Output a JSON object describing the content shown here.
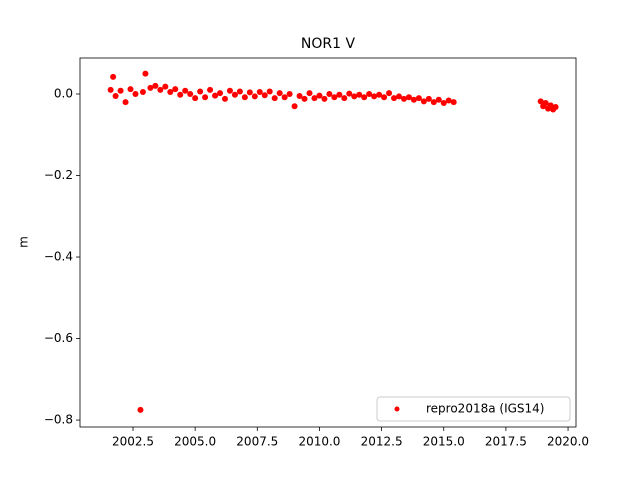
{
  "chart_data": {
    "type": "scatter",
    "title": "NOR1 V",
    "y_label": "m",
    "x": [
      2001.6,
      2001.7,
      2001.8,
      2002.0,
      2002.2,
      2002.4,
      2002.6,
      2002.8,
      2002.9,
      2003.0,
      2003.2,
      2003.4,
      2003.6,
      2003.8,
      2004.0,
      2004.2,
      2004.4,
      2004.6,
      2004.8,
      2005.0,
      2005.2,
      2005.4,
      2005.6,
      2005.8,
      2006.0,
      2006.2,
      2006.4,
      2006.6,
      2006.8,
      2007.0,
      2007.2,
      2007.4,
      2007.6,
      2007.8,
      2008.0,
      2008.2,
      2008.4,
      2008.6,
      2008.8,
      2009.0,
      2009.2,
      2009.4,
      2009.6,
      2009.8,
      2010.0,
      2010.2,
      2010.4,
      2010.6,
      2010.8,
      2011.0,
      2011.2,
      2011.4,
      2011.6,
      2011.8,
      2012.0,
      2012.2,
      2012.4,
      2012.6,
      2012.8,
      2013.0,
      2013.2,
      2013.4,
      2013.6,
      2013.8,
      2014.0,
      2014.2,
      2014.4,
      2014.6,
      2014.8,
      2015.0,
      2015.2,
      2015.4,
      2018.9,
      2019.0,
      2019.1,
      2019.2,
      2019.3,
      2019.4,
      2019.5
    ],
    "series": [
      {
        "name": "repro2018a (IGS14)",
        "color": "#ff0000",
        "values": [
          0.01,
          0.042,
          -0.005,
          0.008,
          -0.02,
          0.012,
          0.0,
          -0.775,
          0.005,
          0.05,
          0.015,
          0.02,
          0.01,
          0.018,
          0.005,
          0.012,
          -0.002,
          0.008,
          0.0,
          -0.01,
          0.006,
          -0.008,
          0.01,
          -0.004,
          0.002,
          -0.012,
          0.008,
          -0.002,
          0.006,
          -0.008,
          0.004,
          -0.006,
          0.005,
          -0.003,
          0.006,
          -0.01,
          0.002,
          -0.008,
          0.0,
          -0.03,
          -0.005,
          -0.012,
          0.002,
          -0.01,
          -0.004,
          -0.012,
          0.0,
          -0.008,
          -0.002,
          -0.01,
          0.001,
          -0.006,
          -0.002,
          -0.008,
          0.0,
          -0.006,
          -0.002,
          -0.008,
          0.002,
          -0.01,
          -0.006,
          -0.012,
          -0.008,
          -0.014,
          -0.01,
          -0.018,
          -0.012,
          -0.02,
          -0.014,
          -0.022,
          -0.016,
          -0.02,
          -0.018,
          -0.03,
          -0.022,
          -0.036,
          -0.028,
          -0.038,
          -0.032
        ]
      }
    ],
    "xlim": [
      2000.368,
      2020.32
    ],
    "ylim": [
      -0.817,
      0.0883
    ],
    "xticks": [
      2002.5,
      {
        "value": 2005,
        "label": "2005.0"
      },
      2007.5,
      {
        "value": 2010,
        "label": "2010.0"
      },
      2012.5,
      {
        "value": 2015,
        "label": "2015.0"
      },
      2017.5,
      {
        "value": 2020,
        "label": "2020.0"
      }
    ],
    "yticks": [
      {
        "value": 0,
        "label": "0.0"
      },
      {
        "value": -0.2,
        "label": "−0.2"
      },
      {
        "value": -0.4,
        "label": "−0.4"
      },
      {
        "value": -0.6,
        "label": "−0.6"
      },
      {
        "value": -0.8,
        "label": "−0.8"
      }
    ],
    "legend": "lower right",
    "grid": false
  }
}
